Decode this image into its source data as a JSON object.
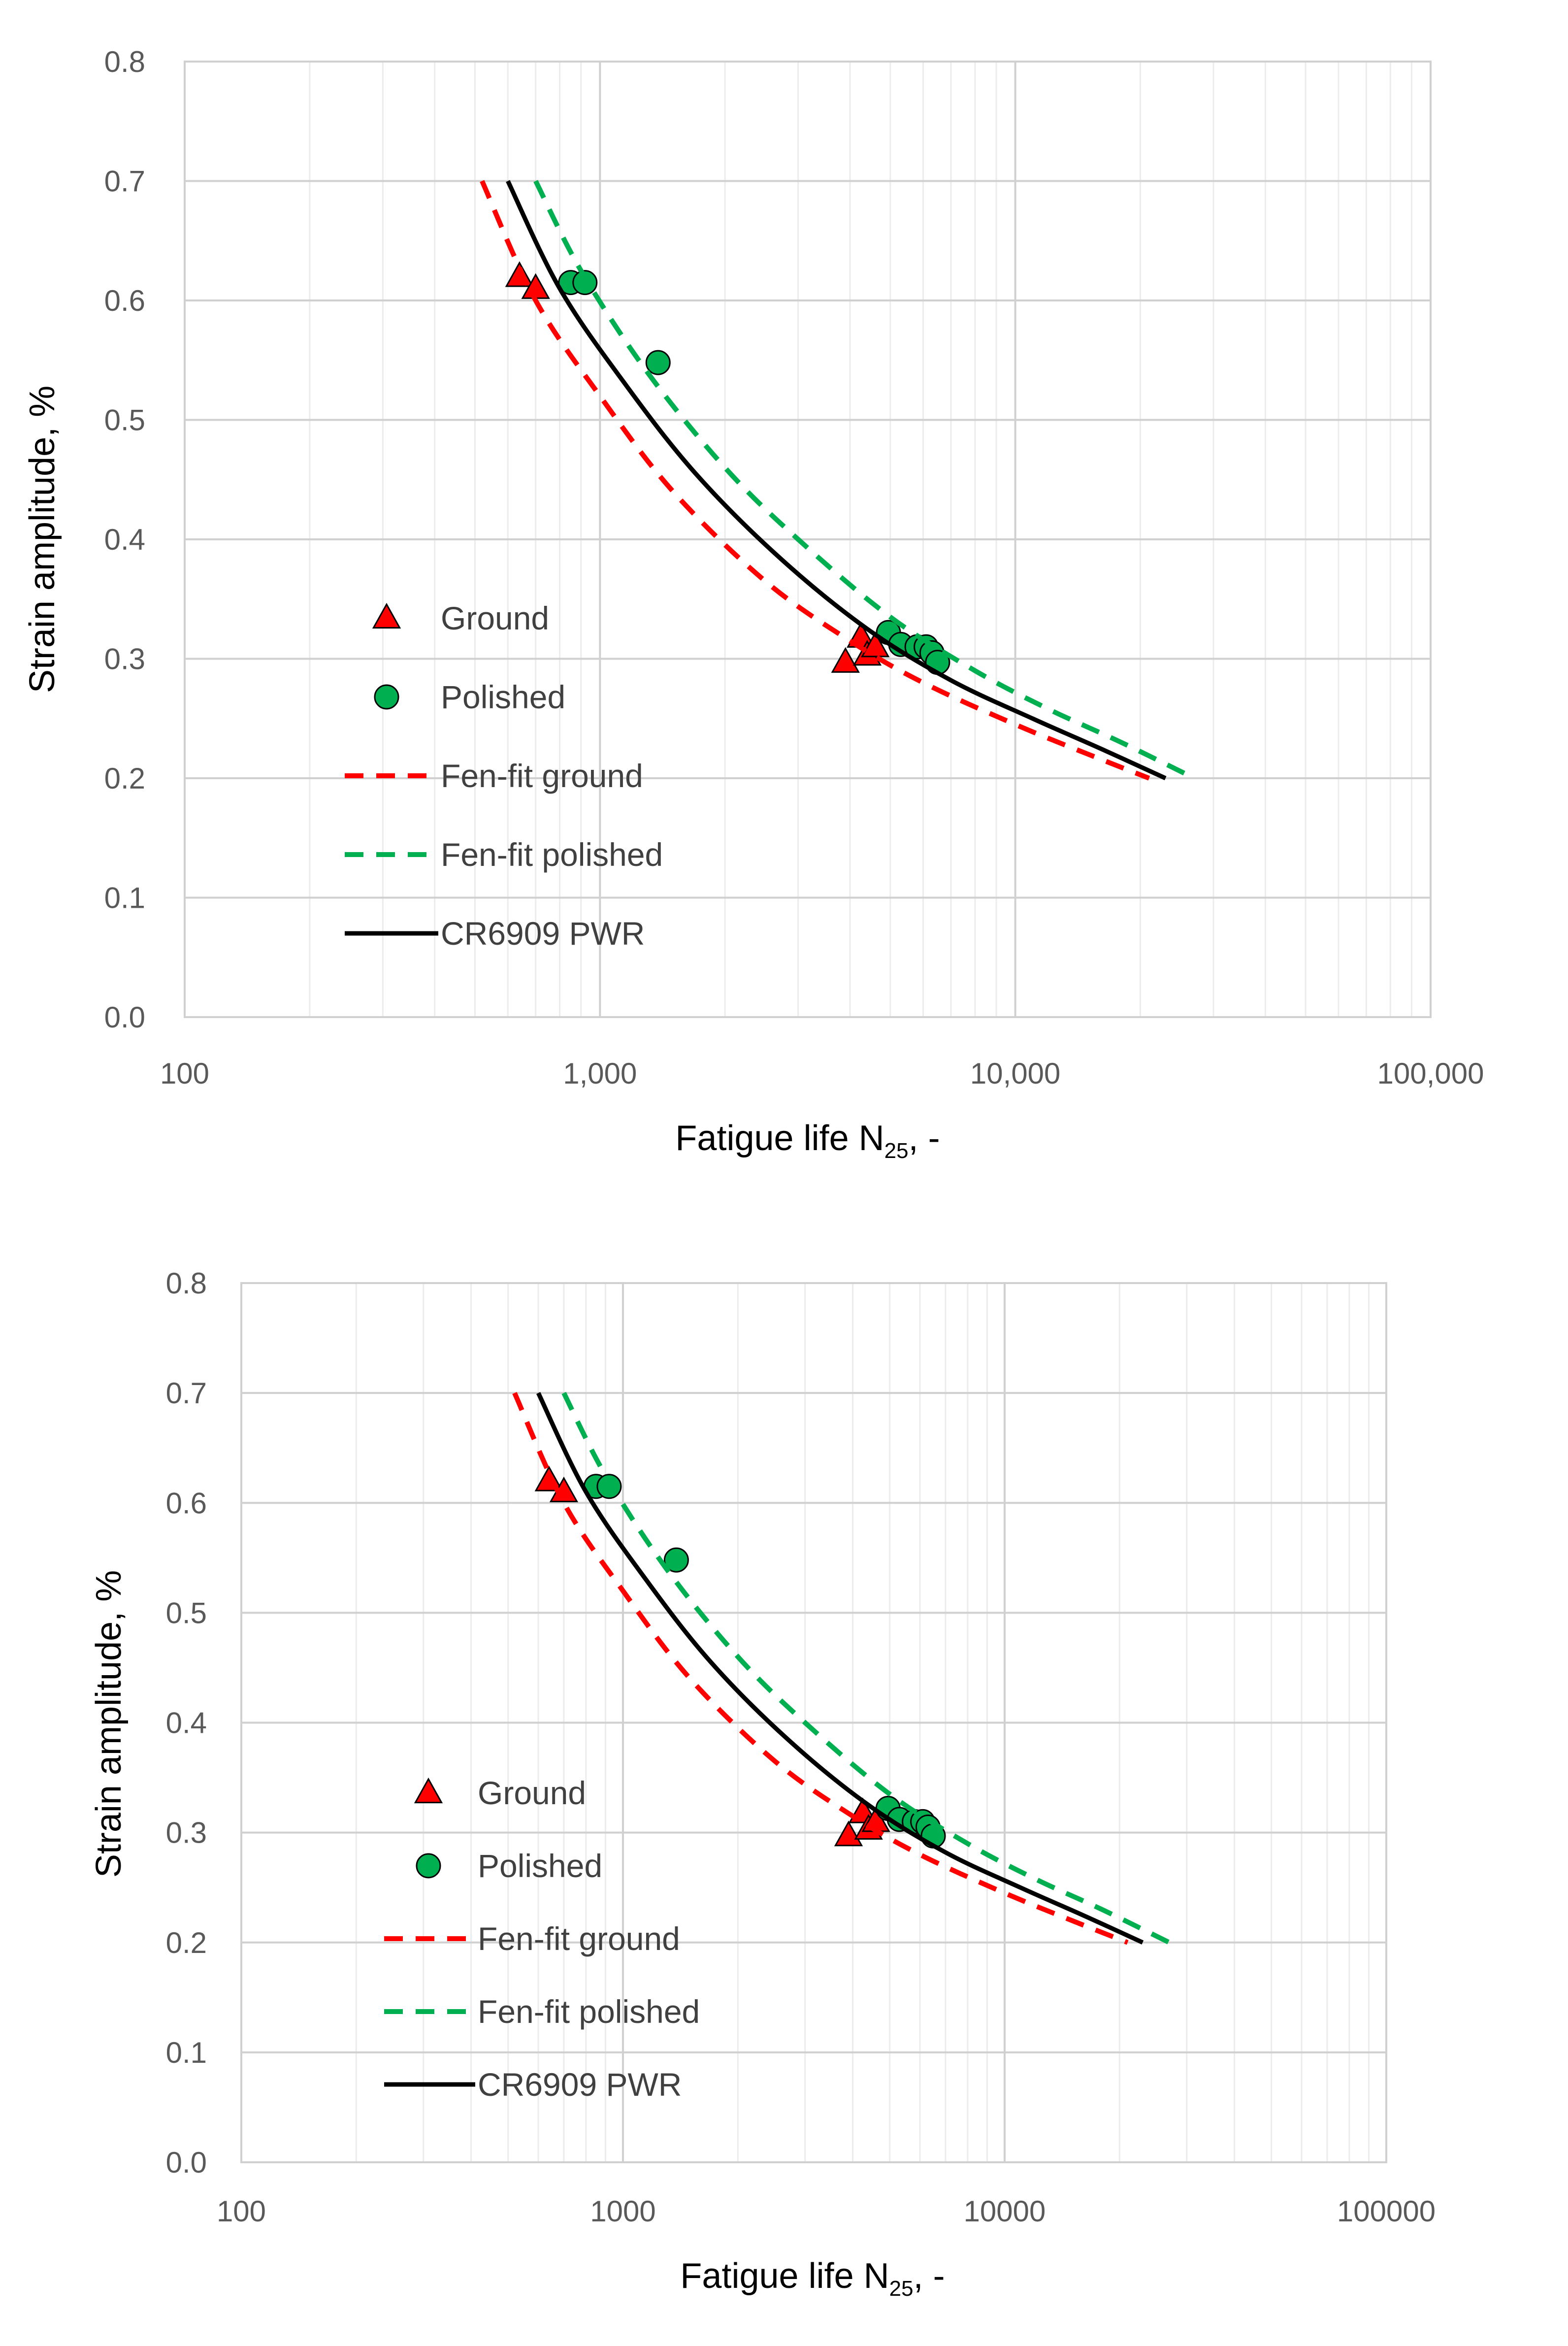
{
  "chart_data": [
    {
      "type": "scatter",
      "x_scale": "log",
      "xlim": [
        100,
        100000
      ],
      "ylim": [
        0,
        0.8
      ],
      "x_ticks": [
        "100",
        "1,000",
        "10,000",
        "100,000"
      ],
      "y_ticks": [
        "0.0",
        "0.1",
        "0.2",
        "0.3",
        "0.4",
        "0.5",
        "0.6",
        "0.7",
        "0.8"
      ],
      "xlabel_main": "Fatigue life N",
      "xlabel_sub": "25",
      "xlabel_tail": ", -",
      "ylabel": "Strain amplitude, %",
      "legend": [
        {
          "label": "Ground"
        },
        {
          "label": "Polished"
        },
        {
          "label": "Fen-fit ground"
        },
        {
          "label": "Fen-fit polished"
        },
        {
          "label": "CR6909 PWR"
        }
      ],
      "series": [
        {
          "name": "Ground",
          "kind": "markers",
          "marker": "triangle",
          "color": "#ff0000",
          "x": [
            640,
            700,
            3900,
            4250,
            4400,
            4600
          ],
          "y": [
            0.62,
            0.61,
            0.297,
            0.318,
            0.303,
            0.31
          ]
        },
        {
          "name": "Polished",
          "kind": "markers",
          "marker": "circle",
          "color": "#00b050",
          "x": [
            850,
            920,
            1380,
            4950,
            5300,
            5800,
            6100,
            6300,
            6500
          ],
          "y": [
            0.615,
            0.615,
            0.548,
            0.322,
            0.312,
            0.31,
            0.31,
            0.305,
            0.297
          ]
        },
        {
          "name": "Fen-fit ground",
          "kind": "line",
          "dash": true,
          "color": "#ff0000",
          "x": [
            520,
            700,
            1000,
            1500,
            2500,
            4000,
            6000,
            10000,
            15000,
            21000
          ],
          "y": [
            0.7,
            0.6,
            0.52,
            0.44,
            0.365,
            0.315,
            0.28,
            0.245,
            0.22,
            0.2
          ]
        },
        {
          "name": "Fen-fit polished",
          "kind": "line",
          "dash": true,
          "color": "#00b050",
          "x": [
            700,
            900,
            1300,
            2000,
            3000,
            5000,
            8000,
            12000,
            18000,
            27000
          ],
          "y": [
            0.7,
            0.625,
            0.54,
            0.46,
            0.4,
            0.335,
            0.29,
            0.258,
            0.23,
            0.2
          ]
        },
        {
          "name": "CR6909 PWR",
          "kind": "line",
          "dash": false,
          "color": "#000000",
          "x": [
            600,
            800,
            1150,
            1700,
            2700,
            4400,
            7000,
            11000,
            16000,
            23000
          ],
          "y": [
            0.7,
            0.61,
            0.53,
            0.455,
            0.385,
            0.325,
            0.282,
            0.25,
            0.225,
            0.2
          ]
        }
      ]
    },
    {
      "type": "scatter",
      "x_scale": "log",
      "xlim": [
        100,
        100000
      ],
      "ylim": [
        0,
        0.8
      ],
      "x_ticks": [
        "100",
        "1000",
        "10000",
        "100000"
      ],
      "y_ticks": [
        "0.0",
        "0.1",
        "0.2",
        "0.3",
        "0.4",
        "0.5",
        "0.6",
        "0.7",
        "0.8"
      ],
      "xlabel_main": "Fatigue life N",
      "xlabel_sub": "25",
      "xlabel_tail": ", -",
      "ylabel": "Strain amplitude, %",
      "legend": [
        {
          "label": "Ground"
        },
        {
          "label": "Polished"
        },
        {
          "label": "Fen-fit ground"
        },
        {
          "label": "Fen-fit polished"
        },
        {
          "label": "CR6909 PWR"
        }
      ],
      "series": [
        {
          "name": "Ground",
          "kind": "markers",
          "marker": "triangle",
          "color": "#ff0000",
          "x": [
            640,
            700,
            3900,
            4250,
            4400,
            4600
          ],
          "y": [
            0.62,
            0.61,
            0.297,
            0.318,
            0.303,
            0.31
          ]
        },
        {
          "name": "Polished",
          "kind": "markers",
          "marker": "circle",
          "color": "#00b050",
          "x": [
            850,
            920,
            1380,
            4950,
            5300,
            5800,
            6100,
            6300,
            6500
          ],
          "y": [
            0.615,
            0.615,
            0.548,
            0.322,
            0.312,
            0.31,
            0.31,
            0.305,
            0.297
          ]
        },
        {
          "name": "Fen-fit ground",
          "kind": "line",
          "dash": true,
          "color": "#ff0000",
          "x": [
            520,
            700,
            1000,
            1500,
            2500,
            4000,
            6000,
            10000,
            15000,
            21000
          ],
          "y": [
            0.7,
            0.6,
            0.52,
            0.44,
            0.365,
            0.315,
            0.28,
            0.245,
            0.22,
            0.2
          ]
        },
        {
          "name": "Fen-fit polished",
          "kind": "line",
          "dash": true,
          "color": "#00b050",
          "x": [
            700,
            900,
            1300,
            2000,
            3000,
            5000,
            8000,
            12000,
            18000,
            27000
          ],
          "y": [
            0.7,
            0.625,
            0.54,
            0.46,
            0.4,
            0.335,
            0.29,
            0.258,
            0.23,
            0.2
          ]
        },
        {
          "name": "CR6909 PWR",
          "kind": "line",
          "dash": false,
          "color": "#000000",
          "x": [
            600,
            800,
            1150,
            1700,
            2700,
            4400,
            7000,
            11000,
            16000,
            23000
          ],
          "y": [
            0.7,
            0.61,
            0.53,
            0.455,
            0.385,
            0.325,
            0.282,
            0.25,
            0.225,
            0.2
          ]
        }
      ]
    }
  ]
}
